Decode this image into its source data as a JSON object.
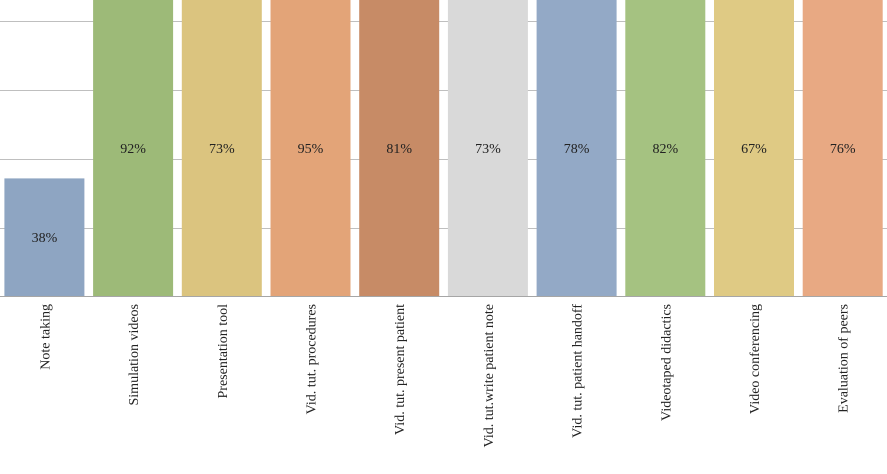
{
  "chart_data": {
    "type": "bar",
    "title": "",
    "xlabel": "",
    "ylabel": "",
    "ylim": [
      30,
      95
    ],
    "grid": true,
    "categories": [
      "Note taking",
      "Simulation videos",
      "Presentation tool",
      "Vid. tut. procedures",
      "Vid. tut. present patient",
      "Vid. tut.write patient note",
      "Vid. tut. patient handoff",
      "Videotaped didactics",
      "Video conferencing",
      "Evaluation of peers"
    ],
    "values": [
      38,
      92,
      73,
      95,
      81,
      73,
      78,
      82,
      67,
      76
    ],
    "value_labels": [
      "38%",
      "92%",
      "73%",
      "95%",
      "81%",
      "73%",
      "78%",
      "82%",
      "67%",
      "76%"
    ],
    "colors": [
      "#8ea5c2",
      "#9dba78",
      "#dbc47f",
      "#e3a478",
      "#c78b66",
      "#d9d9d9",
      "#93a9c6",
      "#a5c281",
      "#dfca84",
      "#e8a983"
    ]
  }
}
